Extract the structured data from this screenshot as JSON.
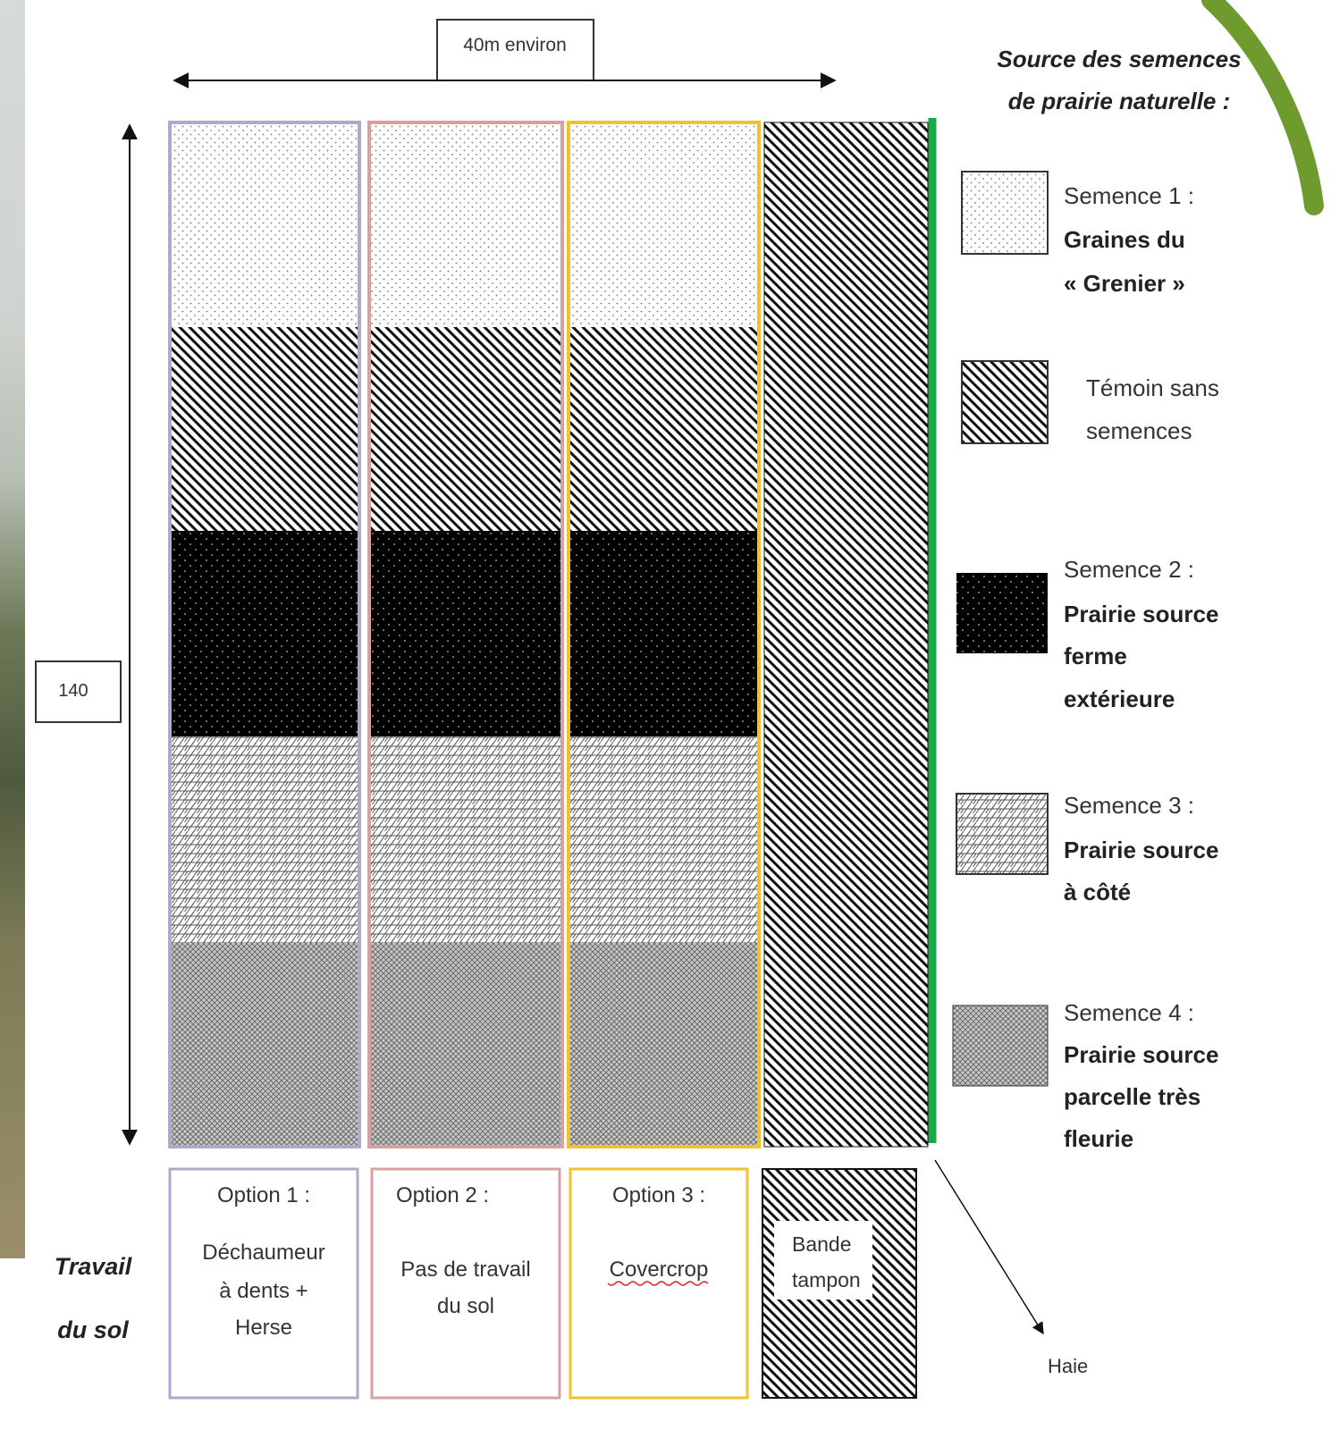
{
  "dimensions": {
    "width_label": "40m environ",
    "height_label": "140"
  },
  "legend": {
    "title_line1": "Source des semences",
    "title_line2": "de prairie naturelle :",
    "items": [
      {
        "line1": "Semence 1 :",
        "line2": "Graines du",
        "line3": "« Grenier »",
        "line4": ""
      },
      {
        "line1": "Témoin sans",
        "line2": "semences",
        "line3": "",
        "line4": ""
      },
      {
        "line1": "Semence 2 :",
        "line2": "Prairie source",
        "line3": "ferme",
        "line4": "extérieure"
      },
      {
        "line1": "Semence 3 :",
        "line2": "Prairie source",
        "line3": "à côté",
        "line4": ""
      },
      {
        "line1": "Semence 4 :",
        "line2": "Prairie source",
        "line3": "parcelle très",
        "line4": "fleurie"
      }
    ]
  },
  "row_label": {
    "line1": "Travail",
    "line2": "du sol"
  },
  "options": [
    {
      "title": "Option 1 :",
      "line1": "Déchaumeur",
      "line2": "à dents +",
      "line3": "Herse",
      "color": "#b4a7cc"
    },
    {
      "title": "Option 2 :",
      "line1": "Pas de travail",
      "line2": "du sol",
      "line3": "",
      "color": "#d9a0a0"
    },
    {
      "title": "Option 3 :",
      "line1": "Covercrop",
      "line2": "",
      "line3": "",
      "color": "#f2c12e"
    }
  ],
  "buffer": {
    "line1": "Bande",
    "line2": "tampon"
  },
  "hedge": {
    "label": "Haie",
    "color": "#1aa84a"
  },
  "decor": {
    "arc_color": "#6f9a2e"
  }
}
